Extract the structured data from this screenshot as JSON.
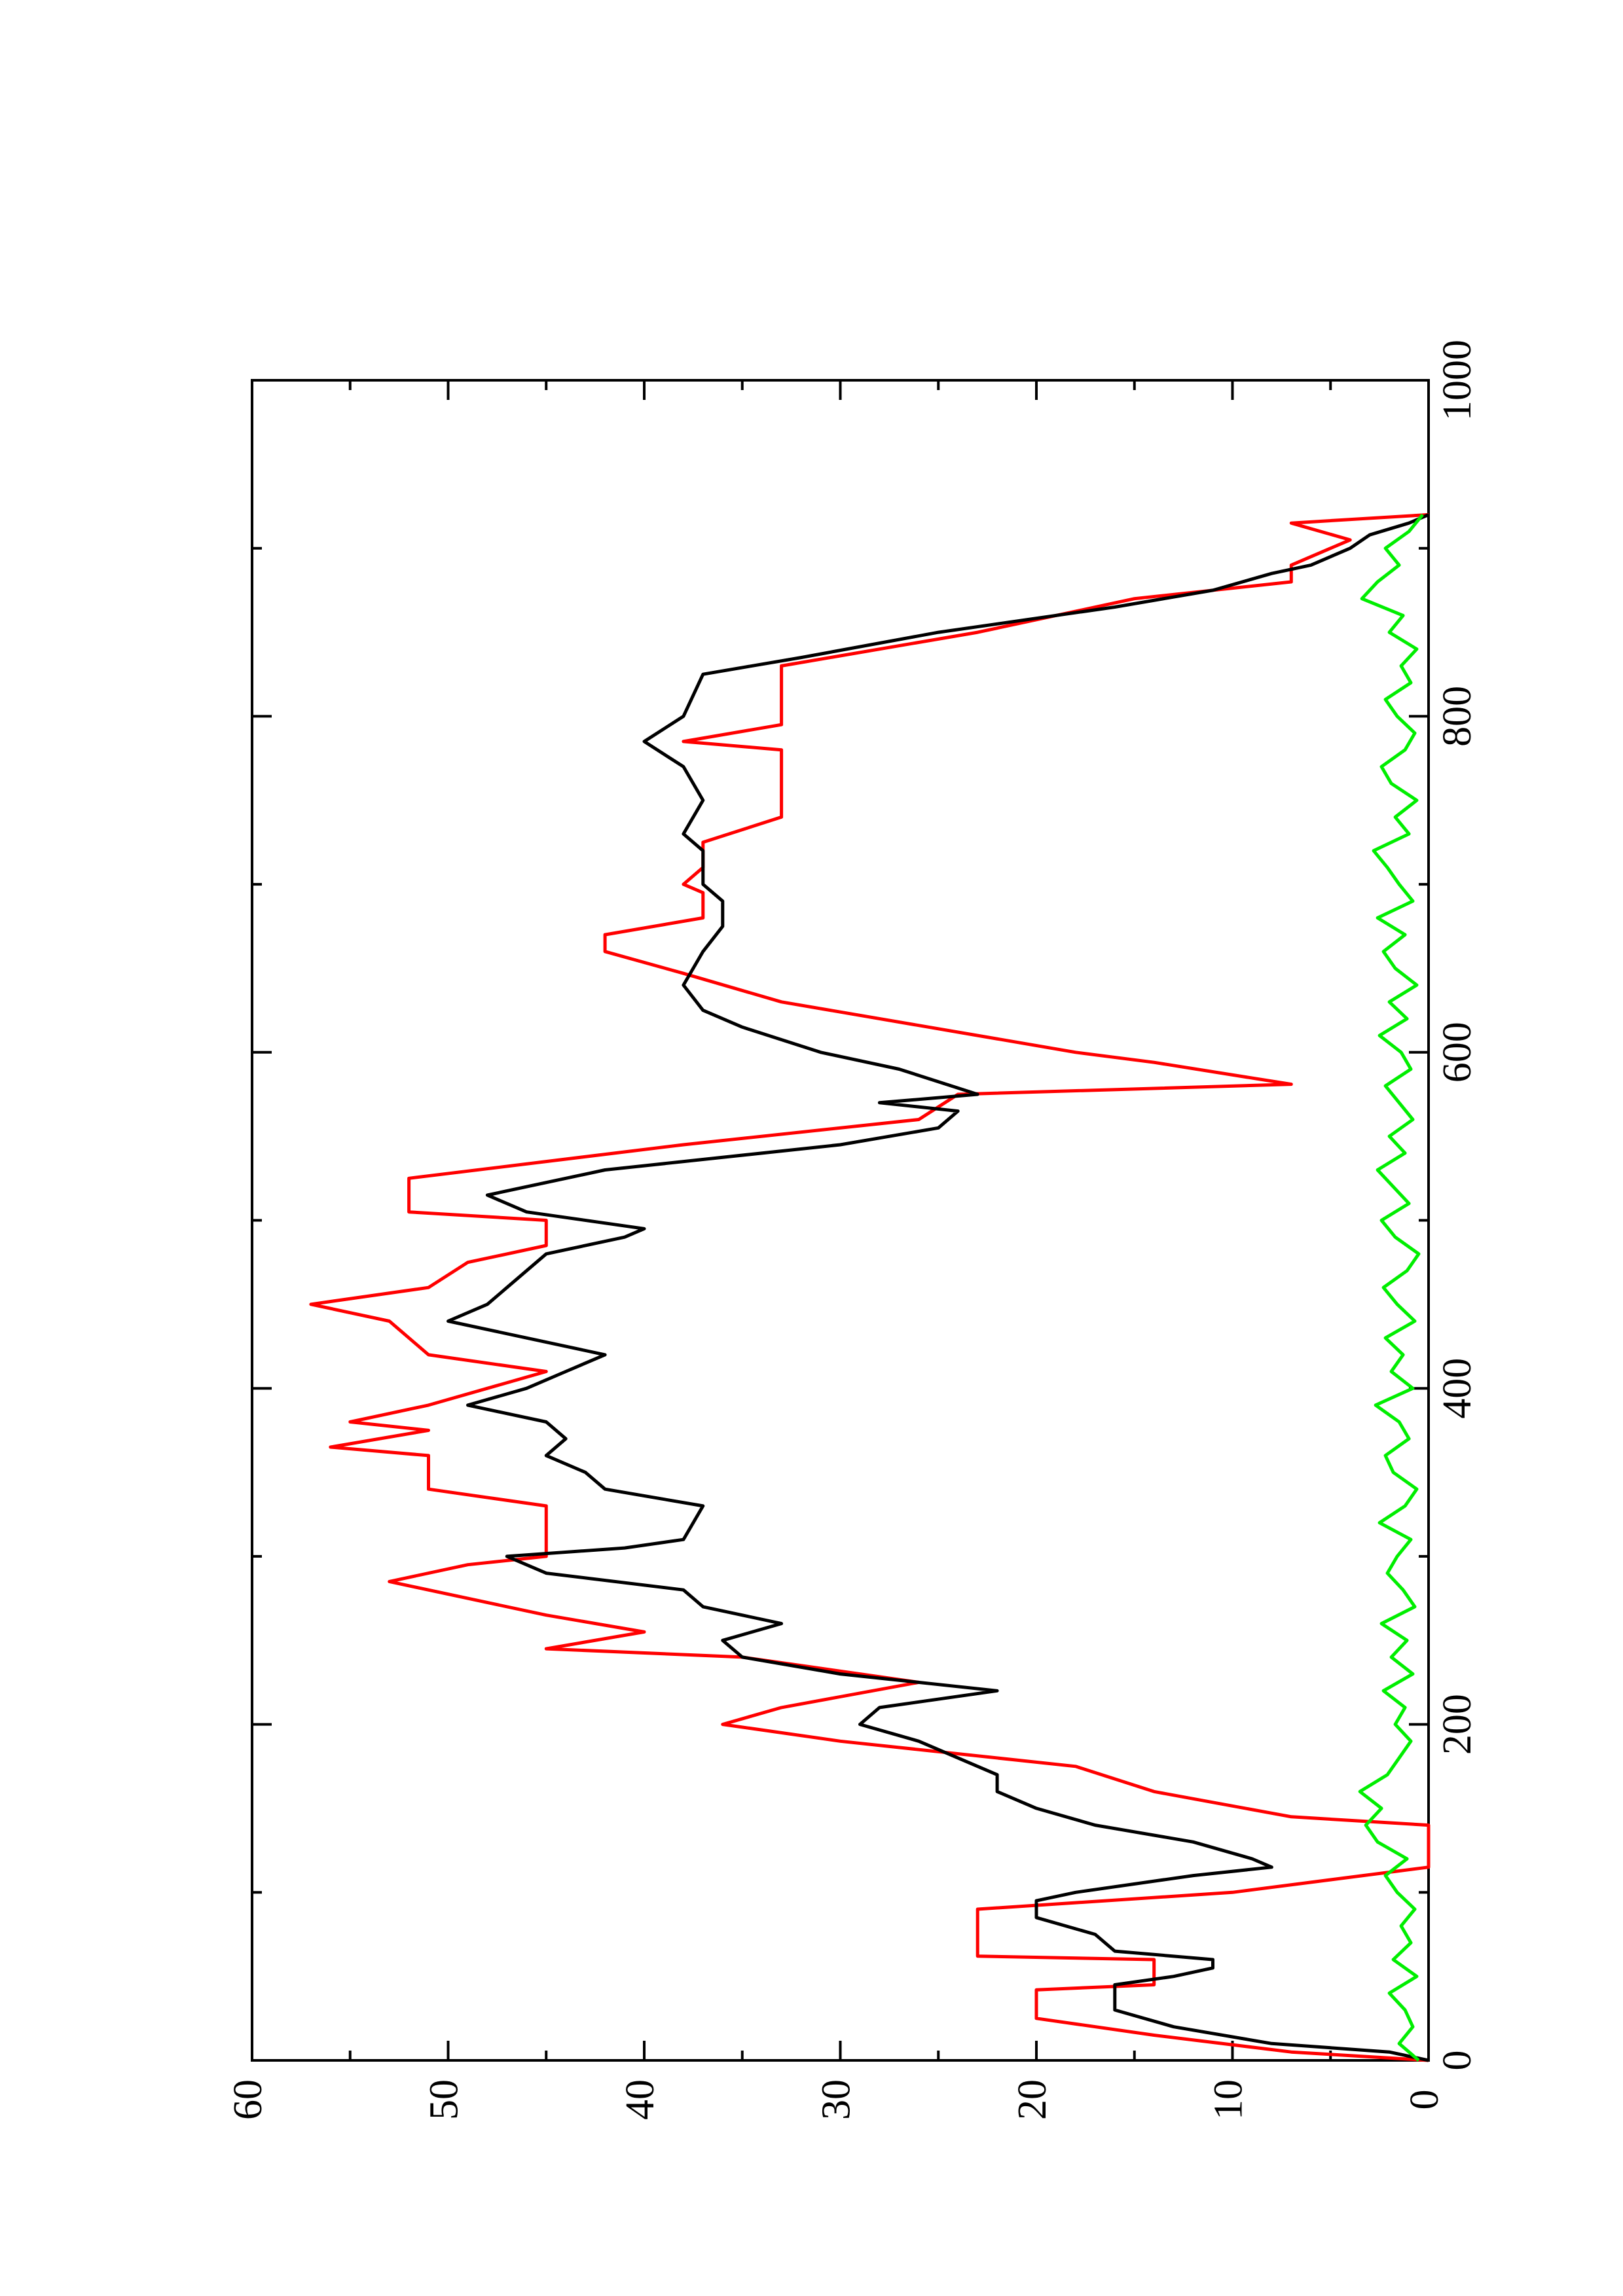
{
  "chart_data": {
    "type": "line",
    "xlim": [
      0,
      1000
    ],
    "xticks": [
      0,
      200,
      400,
      600,
      800,
      1000
    ],
    "ylim": [
      0,
      60
    ],
    "yticks": [
      0,
      10,
      20,
      30,
      40,
      50,
      60
    ],
    "series": [
      {
        "color": "#ff0000",
        "x": [
          0,
          5,
          15,
          25,
          42,
          45,
          60,
          62,
          90,
          100,
          115,
          140,
          145,
          160,
          175,
          190,
          200,
          210,
          225,
          240,
          245,
          255,
          265,
          275,
          285,
          295,
          300,
          330,
          340,
          360,
          365,
          375,
          380,
          390,
          410,
          420,
          440,
          450,
          460,
          475,
          485,
          500,
          505,
          525,
          545,
          560,
          575,
          581,
          594,
          600,
          610,
          630,
          647,
          660,
          670,
          680,
          695,
          700,
          710,
          725,
          740,
          780,
          785,
          795,
          830,
          850,
          870,
          880,
          890,
          905,
          915,
          920
        ],
        "values": [
          0,
          7,
          14,
          20,
          20,
          14,
          14,
          23,
          23,
          10,
          0,
          0,
          7,
          14,
          18,
          30,
          36,
          33,
          26,
          35,
          45,
          40,
          45,
          49,
          53,
          49,
          45,
          45,
          51,
          51,
          56,
          51,
          55,
          51,
          45,
          51,
          53,
          57,
          51,
          49,
          45,
          45,
          52,
          52,
          38,
          26,
          24,
          7,
          14,
          18,
          23,
          33,
          38,
          42,
          42,
          37,
          37,
          38,
          37,
          37,
          33,
          33,
          38,
          33,
          33,
          23,
          15,
          7,
          7,
          4,
          7,
          0
        ]
      },
      {
        "color": "#000000",
        "x": [
          0,
          5,
          10,
          20,
          30,
          45,
          50,
          55,
          60,
          65,
          75,
          85,
          95,
          100,
          110,
          115,
          120,
          130,
          140,
          150,
          160,
          170,
          180,
          190,
          200,
          210,
          220,
          230,
          240,
          250,
          260,
          270,
          280,
          290,
          300,
          305,
          310,
          330,
          340,
          350,
          360,
          370,
          380,
          390,
          400,
          410,
          420,
          430,
          440,
          450,
          460,
          480,
          490,
          495,
          505,
          515,
          530,
          545,
          555,
          565,
          570,
          575,
          590,
          600,
          615,
          625,
          640,
          660,
          675,
          690,
          700,
          720,
          730,
          750,
          770,
          785,
          800,
          825,
          835,
          850,
          865,
          875,
          885,
          890,
          900,
          908,
          915,
          920
        ],
        "values": [
          0,
          2,
          8,
          13,
          16,
          16,
          13,
          11,
          11,
          16,
          17,
          20,
          20,
          18,
          12,
          8,
          9,
          12,
          17,
          20,
          22,
          22,
          24,
          26,
          29,
          28,
          22,
          30,
          35,
          36,
          33,
          37,
          38,
          45,
          47,
          41,
          38,
          37,
          42,
          43,
          45,
          44,
          45,
          49,
          46,
          44,
          42,
          46,
          50,
          48,
          47,
          45,
          41,
          40,
          46,
          48,
          42,
          30,
          25,
          24,
          28,
          23,
          27,
          31,
          35,
          37,
          38,
          37,
          36,
          36,
          37,
          37,
          38,
          37,
          38,
          40,
          38,
          37,
          32,
          25,
          16,
          11,
          8,
          6,
          4,
          3,
          1,
          0
        ]
      },
      {
        "color": "#00ee00",
        "x": [
          0,
          10,
          20,
          30,
          40,
          50,
          60,
          70,
          80,
          90,
          100,
          110,
          120,
          130,
          140,
          150,
          160,
          170,
          180,
          190,
          200,
          210,
          220,
          230,
          240,
          250,
          260,
          270,
          280,
          290,
          300,
          310,
          320,
          330,
          340,
          350,
          360,
          370,
          380,
          390,
          400,
          410,
          420,
          430,
          440,
          450,
          460,
          470,
          480,
          490,
          500,
          510,
          520,
          530,
          540,
          550,
          560,
          570,
          580,
          590,
          600,
          610,
          620,
          630,
          640,
          650,
          660,
          670,
          680,
          690,
          700,
          710,
          720,
          730,
          740,
          750,
          760,
          770,
          780,
          790,
          800,
          810,
          820,
          830,
          840,
          850,
          860,
          870,
          880,
          890,
          900,
          910,
          920
        ],
        "values": [
          0.5,
          1.5,
          0.8,
          1.2,
          2,
          0.6,
          1.8,
          0.9,
          1.4,
          0.7,
          1.6,
          2.2,
          1.1,
          2.6,
          3.2,
          2.4,
          3.5,
          2.1,
          1.5,
          0.9,
          1.7,
          1.2,
          2.3,
          0.8,
          1.9,
          1.1,
          2.4,
          0.7,
          1.3,
          2.1,
          1.6,
          0.9,
          2.5,
          1.2,
          0.6,
          1.8,
          2.2,
          1.0,
          1.5,
          2.7,
          0.8,
          1.9,
          1.3,
          2.2,
          0.7,
          1.6,
          2.3,
          1.1,
          0.5,
          1.7,
          2.4,
          1.0,
          1.8,
          2.6,
          1.2,
          2.0,
          0.8,
          1.5,
          2.2,
          0.9,
          1.4,
          2.5,
          1.1,
          2.0,
          0.6,
          1.7,
          2.3,
          1.2,
          2.6,
          0.8,
          1.5,
          2.1,
          2.8,
          1.0,
          1.7,
          0.6,
          1.9,
          2.4,
          1.2,
          0.7,
          1.6,
          2.2,
          0.9,
          1.4,
          0.6,
          2.0,
          1.3,
          3.4,
          2.6,
          1.5,
          2.2,
          1.0,
          0.3
        ]
      }
    ]
  }
}
